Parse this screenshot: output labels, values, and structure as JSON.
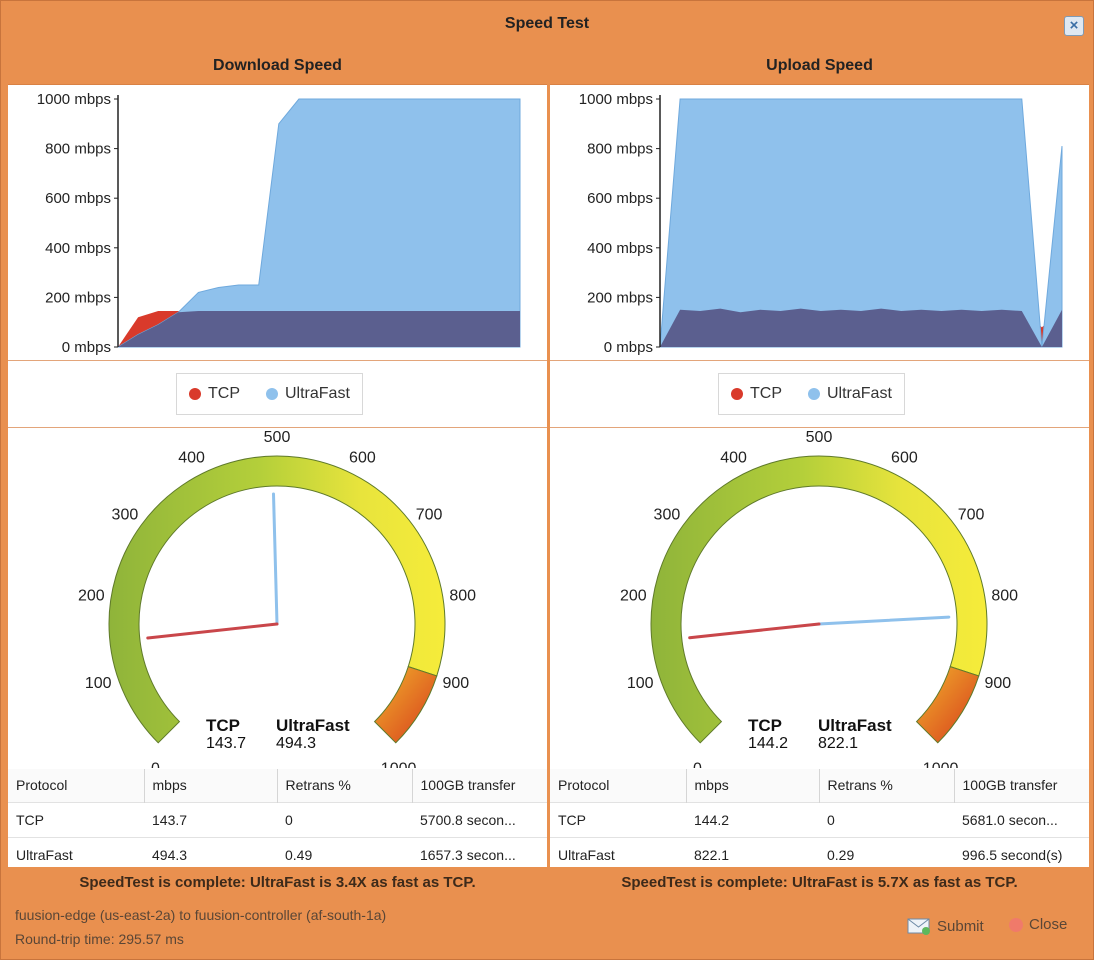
{
  "window": {
    "title": "Speed Test"
  },
  "download": {
    "header": "Download Speed",
    "chart_data": {
      "type": "area",
      "title": "",
      "xlabel": "",
      "ylabel": "",
      "ylim": [
        0,
        1000
      ],
      "yticks": [
        "1000 mbps",
        "800 mbps",
        "600 mbps",
        "400 mbps",
        "200 mbps",
        "0 mbps"
      ],
      "x": [
        0,
        1,
        2,
        3,
        4,
        5,
        6,
        7,
        8,
        9,
        10,
        11,
        12,
        13,
        14,
        15,
        16,
        17,
        18,
        19,
        20
      ],
      "series": [
        {
          "name": "TCP",
          "values": [
            0,
            120,
            145,
            145,
            145,
            145,
            145,
            145,
            145,
            145,
            145,
            145,
            145,
            145,
            145,
            145,
            145,
            145,
            145,
            145,
            145
          ]
        },
        {
          "name": "UltraFast",
          "values": [
            0,
            50,
            90,
            140,
            220,
            240,
            250,
            250,
            900,
            1000,
            1000,
            1000,
            1000,
            1000,
            1000,
            1000,
            1000,
            1000,
            1000,
            1000,
            1000
          ]
        }
      ],
      "legend": "bottom"
    },
    "legend": {
      "tcp": "TCP",
      "ultrafast": "UltraFast"
    },
    "gauge": {
      "ticks": [
        "0",
        "100",
        "200",
        "300",
        "400",
        "500",
        "600",
        "700",
        "800",
        "900",
        "1000"
      ],
      "tcp_value": 143.7,
      "ultrafast_value": 494.3
    },
    "readout": {
      "tcp_label": "TCP",
      "tcp_value": "143.7",
      "ultrafast_label": "UltraFast",
      "ultrafast_value": "494.3"
    },
    "table": {
      "headers": [
        "Protocol",
        "mbps",
        "Retrans %",
        "100GB transfer"
      ],
      "rows": [
        [
          "TCP",
          "143.7",
          "0",
          "5700.8 secon..."
        ],
        [
          "UltraFast",
          "494.3",
          "0.49",
          "1657.3 secon..."
        ]
      ]
    },
    "status": "SpeedTest is complete: UltraFast is 3.4X as fast as TCP."
  },
  "upload": {
    "header": "Upload Speed",
    "chart_data": {
      "type": "area",
      "title": "",
      "xlabel": "",
      "ylabel": "",
      "ylim": [
        0,
        1000
      ],
      "yticks": [
        "1000 mbps",
        "800 mbps",
        "600 mbps",
        "400 mbps",
        "200 mbps",
        "0 mbps"
      ],
      "x": [
        0,
        1,
        2,
        3,
        4,
        5,
        6,
        7,
        8,
        9,
        10,
        11,
        12,
        13,
        14,
        15,
        16,
        17,
        18,
        19,
        20
      ],
      "series": [
        {
          "name": "TCP",
          "values": [
            0,
            150,
            145,
            155,
            140,
            150,
            145,
            155,
            145,
            150,
            145,
            155,
            145,
            150,
            145,
            150,
            145,
            150,
            145,
            80,
            150
          ]
        },
        {
          "name": "UltraFast",
          "values": [
            0,
            1000,
            1000,
            1000,
            1000,
            1000,
            1000,
            1000,
            1000,
            1000,
            1000,
            1000,
            1000,
            1000,
            1000,
            1000,
            1000,
            1000,
            1000,
            0,
            810
          ]
        }
      ],
      "legend": "bottom"
    },
    "legend": {
      "tcp": "TCP",
      "ultrafast": "UltraFast"
    },
    "gauge": {
      "ticks": [
        "0",
        "100",
        "200",
        "300",
        "400",
        "500",
        "600",
        "700",
        "800",
        "900",
        "1000"
      ],
      "tcp_value": 144.2,
      "ultrafast_value": 822.1
    },
    "readout": {
      "tcp_label": "TCP",
      "tcp_value": "144.2",
      "ultrafast_label": "UltraFast",
      "ultrafast_value": "822.1"
    },
    "table": {
      "headers": [
        "Protocol",
        "mbps",
        "Retrans %",
        "100GB transfer"
      ],
      "rows": [
        [
          "TCP",
          "144.2",
          "0",
          "5681.0 secon..."
        ],
        [
          "UltraFast",
          "822.1",
          "0.29",
          "996.5 second(s)"
        ]
      ]
    },
    "status": "SpeedTest is complete: UltraFast is 5.7X as fast as TCP."
  },
  "footer": {
    "route": "fuusion-edge (us-east-2a) to fuusion-controller (af-south-1a)",
    "rtt": "Round-trip time: 295.57 ms",
    "submit_label": "Submit",
    "close_label": "Close"
  },
  "colors": {
    "tcp": "#d93a2b",
    "ultrafast": "#8fc1ec",
    "overlap": "#5b5f8f",
    "frame": "#e9904f"
  },
  "icons": {
    "close": "close-icon",
    "submit": "envelope-icon",
    "close_button": "red-circle-icon"
  }
}
